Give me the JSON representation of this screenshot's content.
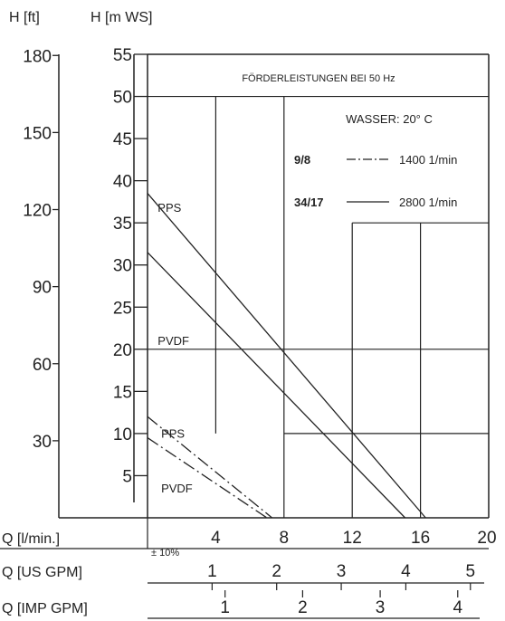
{
  "chart_data": {
    "type": "line",
    "title": "FÖRDERLEISTUNGEN BEI 50 Hz",
    "subtitle": "WASSER: 20° C",
    "xlabel": "Q [l/min.]",
    "xlabel_us": "Q [US GPM]",
    "xlabel_imp": "Q [IMP GPM]",
    "ylabel_m": "H [m WS]",
    "ylabel_ft": "H [ft]",
    "tolerance": "± 10%",
    "xlim": [
      0,
      20
    ],
    "ylim": [
      0,
      55
    ],
    "x_ticks": [
      "4",
      "8",
      "12",
      "16",
      "20"
    ],
    "x_tick_values": [
      4,
      8,
      12,
      16,
      20
    ],
    "y_ticks_m": [
      "5",
      "10",
      "15",
      "20",
      "25",
      "30",
      "35",
      "40",
      "45",
      "50",
      "55"
    ],
    "y_tick_values_m": [
      5,
      10,
      15,
      20,
      25,
      30,
      35,
      40,
      45,
      50,
      55
    ],
    "y_ticks_ft": [
      "30",
      "60",
      "90",
      "120",
      "150",
      "180"
    ],
    "y_tick_values_ft": [
      30,
      60,
      90,
      120,
      150,
      180
    ],
    "us_gpm_ticks": [
      "1",
      "2",
      "3",
      "4",
      "5"
    ],
    "us_gpm_values": [
      1,
      2,
      3,
      4,
      5
    ],
    "imp_gpm_ticks": [
      "1",
      "2",
      "3",
      "4"
    ],
    "imp_gpm_values": [
      1,
      2,
      3,
      4
    ],
    "legend": [
      {
        "code": "9/8",
        "style": "dash-dot",
        "speed": "1400 1/min"
      },
      {
        "code": "34/17",
        "style": "solid",
        "speed": "2800 1/min"
      }
    ],
    "series": [
      {
        "name": "PPS",
        "style": "solid",
        "x": [
          0,
          16.3
        ],
        "y": [
          38.5,
          0
        ]
      },
      {
        "name": "PVDF",
        "style": "solid",
        "x": [
          0,
          15.1
        ],
        "y": [
          31.5,
          0
        ]
      },
      {
        "name": "PPS",
        "style": "dash-dot",
        "x": [
          0,
          7.3
        ],
        "y": [
          12,
          0
        ]
      },
      {
        "name": "PVDF",
        "style": "dash-dot",
        "x": [
          0,
          7.0
        ],
        "y": [
          9.5,
          0
        ]
      }
    ]
  }
}
